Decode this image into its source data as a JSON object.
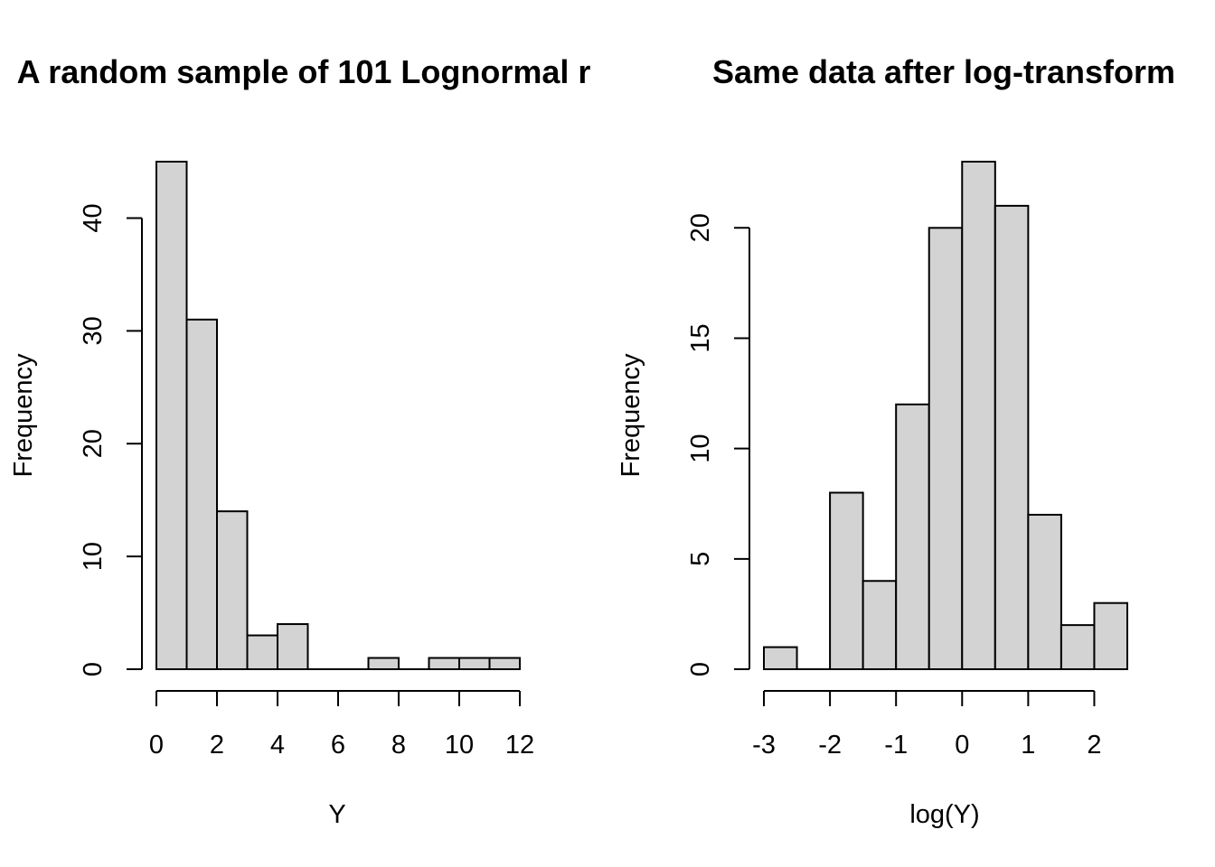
{
  "chart_data": [
    {
      "type": "bar",
      "title": "A random sample of 101 Lognormal r",
      "xlabel": "Y",
      "ylabel": "Frequency",
      "bin_edges": [
        0,
        1,
        2,
        3,
        4,
        5,
        6,
        7,
        8,
        9,
        10,
        11,
        12
      ],
      "values": [
        45,
        31,
        14,
        3,
        4,
        0,
        0,
        1,
        0,
        1,
        1,
        1
      ],
      "xticks": [
        0,
        2,
        4,
        6,
        8,
        10,
        12
      ],
      "xtick_labels": [
        "0",
        "2",
        "4",
        "6",
        "8",
        "10",
        "12"
      ],
      "yticks": [
        0,
        10,
        20,
        30,
        40
      ],
      "ytick_labels": [
        "0",
        "10",
        "20",
        "30",
        "40"
      ],
      "xlim": [
        0,
        12
      ],
      "ylim": [
        0,
        45
      ],
      "bar_color": "#d3d3d3",
      "grid": false
    },
    {
      "type": "bar",
      "title": "Same data after log-transform",
      "xlabel": "log(Y)",
      "ylabel": "Frequency",
      "bin_edges": [
        -3,
        -2.5,
        -2,
        -1.5,
        -1,
        -0.5,
        0,
        0.5,
        1,
        1.5,
        2,
        2.5
      ],
      "values": [
        1,
        0,
        8,
        4,
        12,
        20,
        23,
        21,
        7,
        2,
        3
      ],
      "xticks": [
        -3,
        -2,
        -1,
        0,
        1,
        2
      ],
      "xtick_labels": [
        "-3",
        "-2",
        "-1",
        "0",
        "1",
        "2"
      ],
      "yticks": [
        0,
        5,
        10,
        15,
        20
      ],
      "ytick_labels": [
        "0",
        "5",
        "10",
        "15",
        "20"
      ],
      "xlim": [
        -3,
        2.5
      ],
      "ylim": [
        0,
        23
      ],
      "bar_color": "#d3d3d3",
      "grid": false
    }
  ]
}
